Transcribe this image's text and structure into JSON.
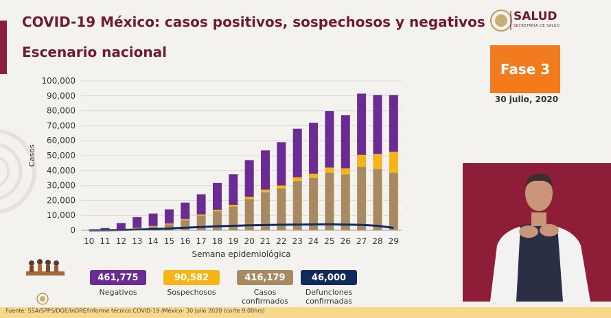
{
  "header": {
    "title": "COVID-19 México: casos positivos, sospechosos y negativos",
    "subtitle": "Escenario nacional"
  },
  "brand": {
    "name": "SALUD",
    "tagline": "SECRETARÍA DE SALUD"
  },
  "phase": {
    "label": "Fase 3",
    "date": "30 julio, 2020"
  },
  "colors": {
    "negativos": "#6a2c91",
    "sospechosos": "#f5b418",
    "confirmados": "#a88a62",
    "defunciones": "#102a5c",
    "accent": "#6e1a35",
    "phase": "#f27b1e"
  },
  "chart_data": {
    "type": "bar",
    "stacked": true,
    "xlabel": "Semana epidemiológica",
    "ylabel": "Casos",
    "ylim": [
      0,
      100000
    ],
    "yticks": [
      "0",
      "10,000",
      "20,000",
      "30,000",
      "40,000",
      "50,000",
      "60,000",
      "70,000",
      "80,000",
      "90,000",
      "100,000"
    ],
    "categories": [
      "10",
      "11",
      "12",
      "13",
      "14",
      "15",
      "16",
      "17",
      "18",
      "19",
      "20",
      "21",
      "22",
      "23",
      "24",
      "25",
      "26",
      "27",
      "28",
      "29"
    ],
    "series": [
      {
        "key": "confirmados",
        "values": [
          50,
          150,
          500,
          1300,
          2500,
          4000,
          6800,
          9800,
          12800,
          15800,
          21000,
          25500,
          28000,
          33000,
          35000,
          38500,
          37500,
          42500,
          41000,
          38500
        ]
      },
      {
        "key": "sospechosos",
        "values": [
          20,
          50,
          150,
          300,
          400,
          500,
          700,
          800,
          900,
          1200,
          1400,
          1700,
          2000,
          2500,
          2800,
          3500,
          4000,
          8000,
          10000,
          14000
        ]
      },
      {
        "key": "negativos",
        "values": [
          130,
          1300,
          4200,
          7200,
          8300,
          9500,
          11000,
          13500,
          18000,
          20500,
          24500,
          26300,
          29000,
          32500,
          34200,
          37800,
          35500,
          41000,
          39500,
          38000
        ]
      }
    ],
    "line": {
      "key": "defunciones",
      "values": [
        5,
        50,
        200,
        450,
        800,
        1200,
        1700,
        2200,
        2700,
        3000,
        3300,
        3500,
        3700,
        3800,
        3900,
        4000,
        3800,
        3600,
        3000,
        1600
      ]
    }
  },
  "legend": [
    {
      "key": "negativos",
      "value": "461,775",
      "label": "Negativos"
    },
    {
      "key": "sospechosos",
      "value": "90,582",
      "label": "Sospechosos"
    },
    {
      "key": "confirmados",
      "value": "416,179",
      "label": "Casos confirmados"
    },
    {
      "key": "defunciones",
      "value": "46,000",
      "label": "Defunciones confirmadas"
    }
  ],
  "footer": {
    "source": "Fuente: SSA/SPPS/DGE/InDRE/Informe técnico.COVID-19 /México- 30 julio 2020 (corte 9:00hrs)"
  }
}
